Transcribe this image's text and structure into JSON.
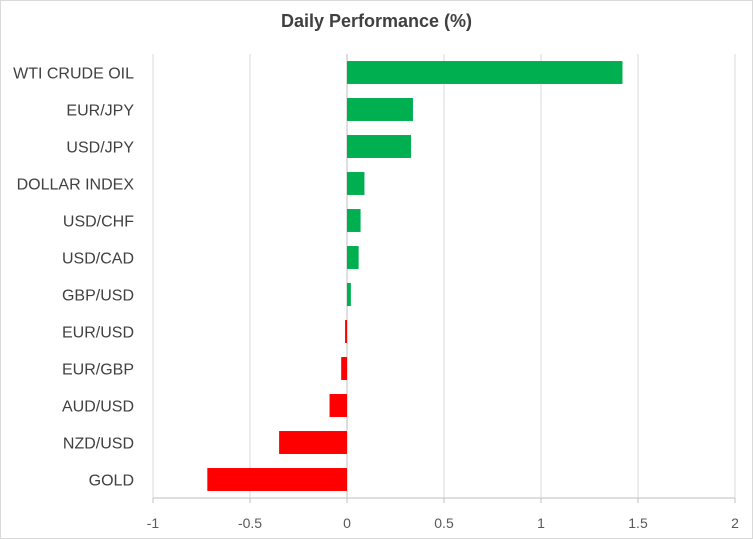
{
  "chart_data": {
    "type": "bar",
    "orientation": "horizontal",
    "title": "Daily Performance  (%)",
    "xlabel": "",
    "ylabel": "",
    "categories": [
      "WTI CRUDE OIL",
      "EUR/JPY",
      "USD/JPY",
      "DOLLAR INDEX",
      "USD/CHF",
      "USD/CAD",
      "GBP/USD",
      "EUR/USD",
      "EUR/GBP",
      "AUD/USD",
      "NZD/USD",
      "GOLD"
    ],
    "values": [
      1.42,
      0.34,
      0.33,
      0.09,
      0.07,
      0.06,
      0.02,
      -0.01,
      -0.03,
      -0.09,
      -0.35,
      -0.72
    ],
    "xlim": [
      -1,
      2
    ],
    "xticks": [
      -1,
      -0.5,
      0,
      0.5,
      1,
      1.5,
      2
    ],
    "xtick_labels": [
      "-1",
      "-0.5",
      "0",
      "0.5",
      "1",
      "1.5",
      "2"
    ],
    "grid": "vertical",
    "legend": "none",
    "colors": {
      "positive": "#00b050",
      "negative": "#ff0000",
      "grid": "#d9d9d9",
      "axis": "#bfbfbf",
      "text": "#404040"
    }
  }
}
